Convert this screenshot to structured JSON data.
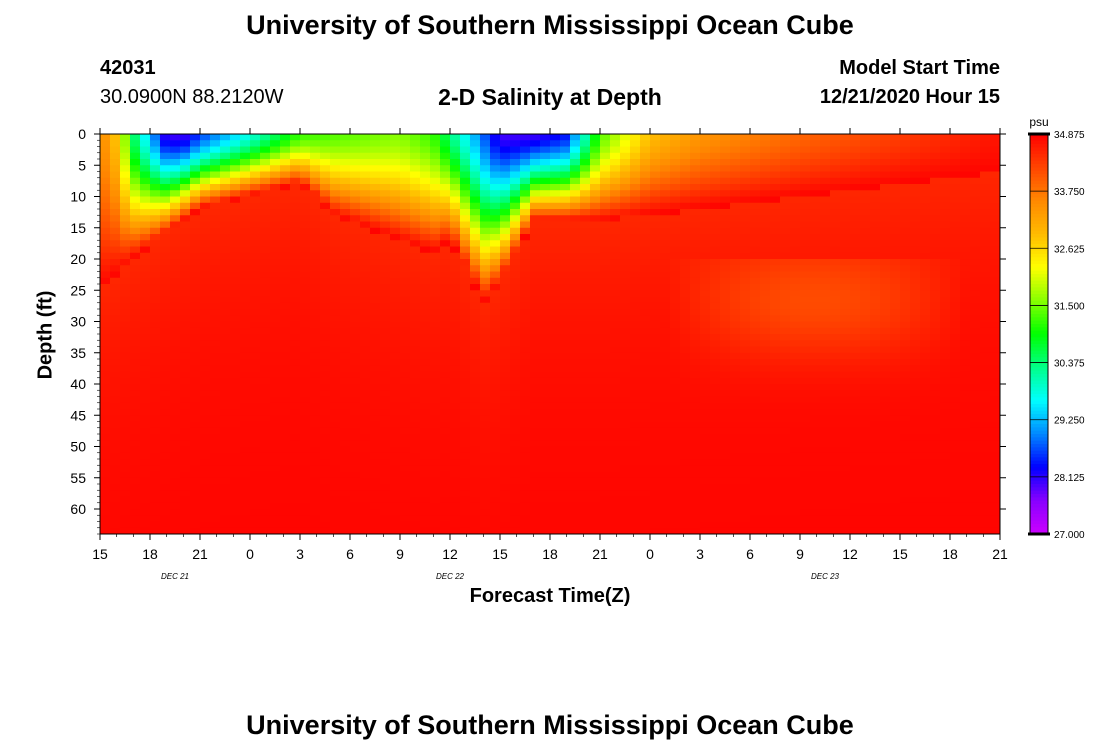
{
  "top_title": "University of Southern Mississippi Ocean Cube",
  "bottom_title": "University of Southern Mississippi Ocean Cube",
  "station": {
    "id": "42031",
    "coords": "30.0900N 88.2120W"
  },
  "model": {
    "label": "Model Start Time",
    "start": "12/21/2020 Hour 15"
  },
  "chart_data": {
    "type": "heatmap",
    "title": "2-D Salinity at Depth",
    "xlabel": "Forecast Time(Z)",
    "ylabel": "Depth (ft)",
    "x_ticks": [
      "15",
      "18",
      "21",
      "0",
      "3",
      "6",
      "9",
      "12",
      "15",
      "18",
      "21",
      "0",
      "3",
      "6",
      "9",
      "12",
      "15",
      "18",
      "21"
    ],
    "date_labels": [
      {
        "text": "DEC  21",
        "at_tick": 1.5
      },
      {
        "text": "DEC  22",
        "at_tick": 7
      },
      {
        "text": "DEC  23",
        "at_tick": 14.5
      }
    ],
    "y_ticks": [
      "0",
      "5",
      "10",
      "15",
      "20",
      "25",
      "30",
      "35",
      "40",
      "45",
      "50",
      "55",
      "60"
    ],
    "ylim": [
      0,
      64
    ],
    "xlim_hours": [
      0,
      54
    ],
    "colorbar": {
      "unit": "psu",
      "ticks": [
        "34.875",
        "33.750",
        "32.625",
        "31.500",
        "30.375",
        "29.250",
        "28.125",
        "27.000"
      ],
      "range": [
        27.0,
        34.875
      ],
      "colors": [
        "#cc00ff",
        "#8800ff",
        "#0000ff",
        "#0088ff",
        "#00ffff",
        "#00ff88",
        "#00ff00",
        "#88ff00",
        "#ffff00",
        "#ffbb00",
        "#ff8800",
        "#ff4400",
        "#ff0000"
      ]
    },
    "surface_salinity_psu": [
      {
        "hour": 0,
        "psu": 33.6
      },
      {
        "hour": 1,
        "psu": 32.8
      },
      {
        "hour": 2,
        "psu": 30.5
      },
      {
        "hour": 4,
        "psu": 28.0
      },
      {
        "hour": 5,
        "psu": 28.0
      },
      {
        "hour": 6,
        "psu": 28.6
      },
      {
        "hour": 9,
        "psu": 29.8
      },
      {
        "hour": 12,
        "psu": 31.2
      },
      {
        "hour": 15,
        "psu": 31.4
      },
      {
        "hour": 18,
        "psu": 31.6
      },
      {
        "hour": 20,
        "psu": 31.2
      },
      {
        "hour": 24,
        "psu": 28.0
      },
      {
        "hour": 26,
        "psu": 28.0
      },
      {
        "hour": 28,
        "psu": 28.4
      },
      {
        "hour": 30,
        "psu": 31.3
      },
      {
        "hour": 33,
        "psu": 32.9
      },
      {
        "hour": 36,
        "psu": 33.4
      },
      {
        "hour": 42,
        "psu": 33.9
      },
      {
        "hour": 48,
        "psu": 34.3
      },
      {
        "hour": 54,
        "psu": 34.7
      }
    ],
    "fresh_layer_depth_ft": [
      {
        "hour": 0,
        "depth": 25
      },
      {
        "hour": 2,
        "depth": 20
      },
      {
        "hour": 6,
        "depth": 12
      },
      {
        "hour": 12,
        "depth": 8
      },
      {
        "hour": 14,
        "depth": 13
      },
      {
        "hour": 18,
        "depth": 17
      },
      {
        "hour": 20,
        "depth": 19
      },
      {
        "hour": 21,
        "depth": 17
      },
      {
        "hour": 23,
        "depth": 27
      },
      {
        "hour": 24,
        "depth": 24
      },
      {
        "hour": 26,
        "depth": 14
      },
      {
        "hour": 30,
        "depth": 14
      },
      {
        "hour": 36,
        "depth": 12
      },
      {
        "hour": 42,
        "depth": 10
      },
      {
        "hour": 54,
        "depth": 6
      }
    ],
    "deep_salinity_psu": 34.85
  }
}
